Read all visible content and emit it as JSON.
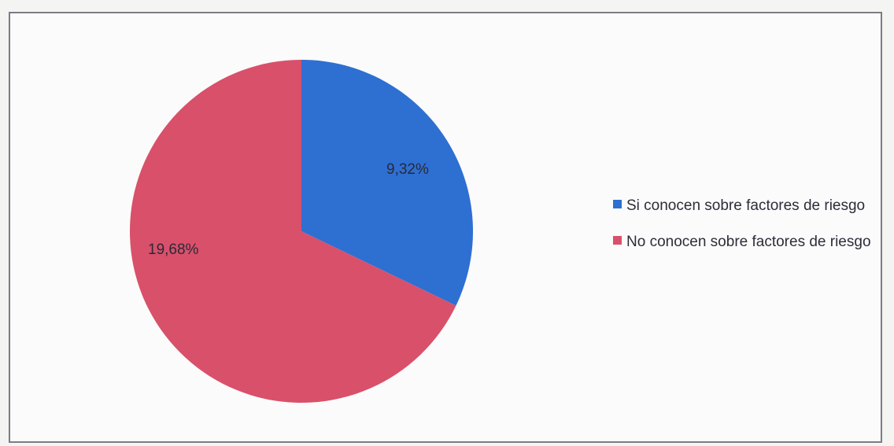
{
  "chart_data": {
    "type": "pie",
    "categories": [
      "Si conocen sobre factores de riesgo",
      "No conocen sobre factores de riesgo"
    ],
    "values": [
      9.32,
      19.68
    ],
    "data_labels": [
      "9,32%",
      "19,68%"
    ],
    "colors": [
      "#2e6fd2",
      "#d9506a"
    ],
    "legend": "right",
    "title": ""
  }
}
